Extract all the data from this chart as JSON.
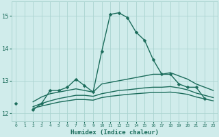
{
  "xlabel": "Humidex (Indice chaleur)",
  "x_values": [
    0,
    1,
    2,
    3,
    4,
    5,
    6,
    7,
    8,
    9,
    10,
    11,
    12,
    13,
    14,
    15,
    16,
    17,
    18,
    19,
    20,
    21,
    22,
    23
  ],
  "line1": [
    12.3,
    null,
    12.1,
    12.3,
    12.7,
    12.7,
    12.8,
    13.05,
    12.85,
    12.65,
    13.9,
    15.05,
    15.1,
    14.95,
    14.5,
    14.25,
    13.65,
    13.2,
    13.2,
    12.9,
    12.8,
    12.8,
    12.45,
    null
  ],
  "line2": [
    12.25,
    null,
    12.35,
    12.5,
    12.6,
    12.65,
    12.7,
    12.75,
    12.7,
    12.65,
    12.9,
    12.95,
    13.0,
    13.05,
    13.1,
    13.15,
    13.2,
    13.2,
    13.25,
    13.15,
    13.05,
    12.9,
    12.8,
    12.7
  ],
  "line3": [
    12.25,
    null,
    12.2,
    12.3,
    12.38,
    12.45,
    12.5,
    12.55,
    12.55,
    12.52,
    12.6,
    12.65,
    12.7,
    12.72,
    12.75,
    12.78,
    12.8,
    12.8,
    12.82,
    12.78,
    12.72,
    12.62,
    12.55,
    12.48
  ],
  "line4": [
    12.25,
    null,
    12.15,
    12.22,
    12.28,
    12.34,
    12.38,
    12.42,
    12.42,
    12.4,
    12.48,
    12.52,
    12.55,
    12.58,
    12.6,
    12.62,
    12.64,
    12.64,
    12.65,
    12.62,
    12.58,
    12.5,
    12.44,
    12.38
  ],
  "line_color": "#1a6b5a",
  "bg_color": "#d0eceb",
  "grid_color": "#aad4d0",
  "ylim_min": 11.75,
  "ylim_max": 15.45,
  "xlim_min": -0.5,
  "xlim_max": 23.5,
  "yticks": [
    12,
    13,
    14,
    15
  ],
  "marker_size": 2.5
}
